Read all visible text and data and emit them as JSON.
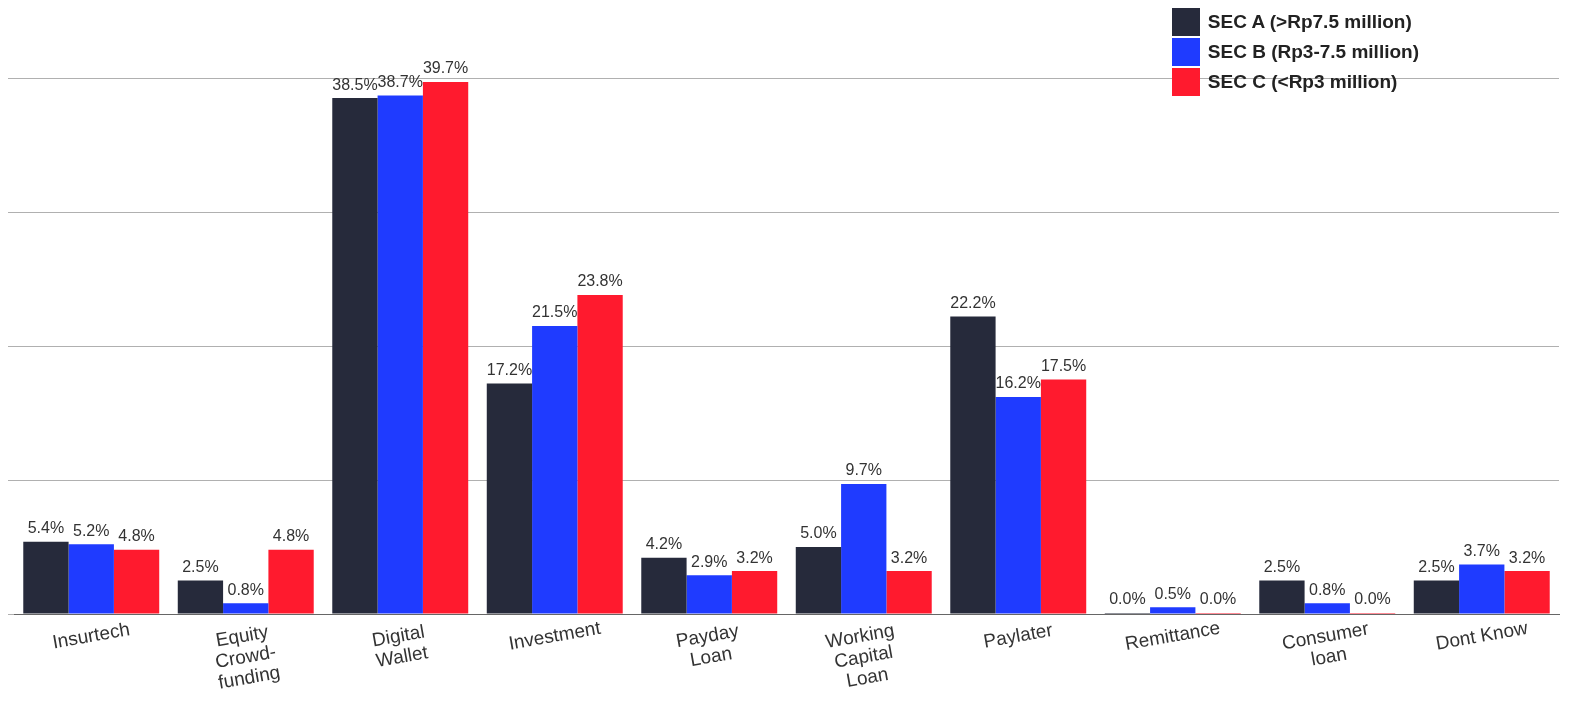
{
  "chart_data": {
    "type": "bar",
    "categories": [
      "Insurtech",
      "Equity\nCrowd-\nfunding",
      "Digital\nWallet",
      "Investment",
      "Payday\nLoan",
      "Working\nCapital\nLoan",
      "Paylater",
      "Remittance",
      "Consumer\nloan",
      "Dont Know"
    ],
    "series": [
      {
        "name": "SEC A (>Rp7.5 million)",
        "color": "#262a3b",
        "values": [
          5.4,
          2.5,
          38.5,
          17.2,
          4.2,
          5.0,
          22.2,
          0.0,
          2.5,
          2.5
        ],
        "value_labels": [
          "5.4%",
          "2.5%",
          "38.5%",
          "17.2%",
          "4.2%",
          "5.0%",
          "22.2%",
          "0.0%",
          "2.5%",
          "2.5%"
        ]
      },
      {
        "name": "SEC B (Rp3-7.5 million)",
        "color": "#1f3bff",
        "values": [
          5.2,
          0.8,
          38.7,
          21.5,
          2.9,
          9.7,
          16.2,
          0.5,
          0.8,
          3.7
        ],
        "value_labels": [
          "5.2%",
          "0.8%",
          "38.7%",
          "21.5%",
          "2.9%",
          "9.7%",
          "16.2%",
          "0.5%",
          "0.8%",
          "3.7%"
        ]
      },
      {
        "name": "SEC C (<Rp3 million)",
        "color": "#ff1a2e",
        "values": [
          4.8,
          4.8,
          39.7,
          23.8,
          3.2,
          3.2,
          17.5,
          0.0,
          0.0,
          3.2
        ],
        "value_labels": [
          "4.8%",
          "4.8%",
          "39.7%",
          "23.8%",
          "3.2%",
          "3.2%",
          "17.5%",
          "0.0%",
          "0.0%",
          "3.2%"
        ]
      }
    ],
    "tick_labels": "x",
    "grid": "y",
    "legend": "top right"
  }
}
